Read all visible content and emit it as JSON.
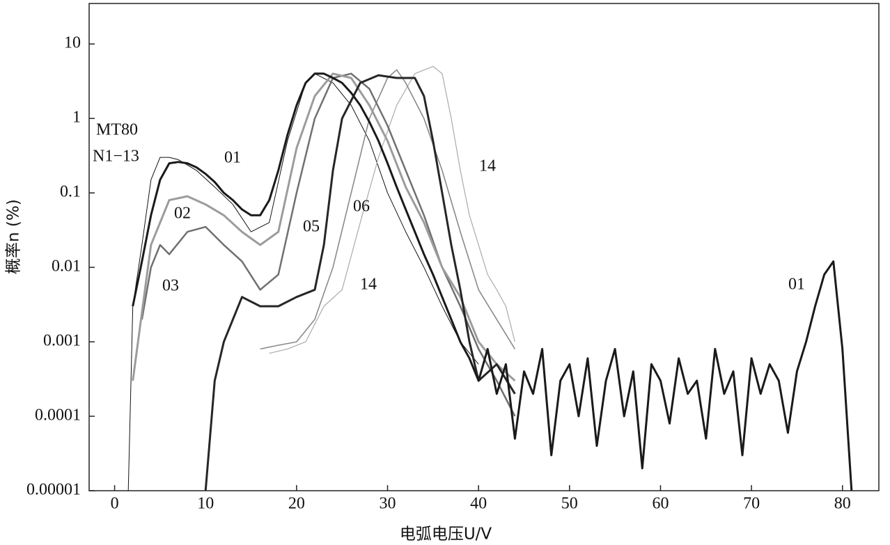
{
  "chart_data": {
    "type": "line",
    "x_label": "电弧电压U/V",
    "y_label": "概率n (%)",
    "log_y": true,
    "xlim": [
      -2.8,
      84
    ],
    "xticks": [
      0,
      10,
      20,
      30,
      40,
      50,
      60,
      70,
      80
    ],
    "ylim": [
      1e-05,
      35
    ],
    "yticks": [
      10,
      1,
      0.1,
      0.01,
      0.001,
      0.0001,
      {
        "value": 1e-05,
        "label": "0.00001"
      }
    ],
    "annotations": [
      "MT80",
      "N1−13"
    ],
    "series": [
      {
        "color": "#111111",
        "width": 1,
        "x": [
          1.5,
          2,
          3,
          4,
          5,
          6,
          7,
          9,
          11,
          13,
          15,
          17,
          19,
          21,
          22,
          24,
          26,
          28,
          30,
          32,
          34,
          36,
          38,
          40
        ],
        "values": [
          1e-05,
          0.003,
          0.02,
          0.15,
          0.3,
          0.3,
          0.28,
          0.2,
          0.12,
          0.07,
          0.03,
          0.04,
          0.5,
          3,
          4,
          3,
          1.5,
          0.5,
          0.1,
          0.03,
          0.01,
          0.003,
          0.001,
          0.0005
        ]
      },
      {
        "name": "14",
        "color": "#aaaaaa",
        "width": 1.2,
        "x": [
          17,
          19,
          21,
          23,
          25,
          27,
          29,
          31,
          33,
          35,
          36,
          37,
          38,
          39,
          40,
          41,
          42,
          43,
          44
        ],
        "values": [
          0.0007,
          0.0008,
          0.001,
          0.003,
          0.005,
          0.04,
          0.3,
          1.5,
          4,
          5,
          4,
          1,
          0.2,
          0.05,
          0.02,
          0.008,
          0.005,
          0.003,
          0.001
        ]
      },
      {
        "name": "06",
        "color": "#8a8a8a",
        "width": 1.6,
        "x": [
          16,
          18,
          20,
          22,
          24,
          26,
          28,
          30,
          31,
          32,
          34,
          36,
          38,
          40,
          42,
          44
        ],
        "values": [
          0.0008,
          0.0009,
          0.001,
          0.002,
          0.01,
          0.1,
          1,
          3.5,
          4.5,
          3,
          1,
          0.2,
          0.03,
          0.005,
          0.002,
          0.0008
        ]
      },
      {
        "name": "03",
        "color": "#707070",
        "width": 2.5,
        "x": [
          3,
          4,
          5,
          6,
          8,
          10,
          12,
          14,
          16,
          18,
          20,
          22,
          24,
          26,
          28,
          30,
          32,
          34,
          36,
          38,
          40,
          42,
          44
        ],
        "values": [
          0.002,
          0.01,
          0.02,
          0.015,
          0.03,
          0.035,
          0.02,
          0.012,
          0.005,
          0.008,
          0.1,
          1,
          3.5,
          4,
          2.5,
          0.8,
          0.2,
          0.05,
          0.01,
          0.003,
          0.0008,
          0.0003,
          0.0001
        ]
      },
      {
        "name": "02",
        "color": "#9c9c9c",
        "width": 3,
        "x": [
          2,
          4,
          6,
          8,
          10,
          12,
          14,
          16,
          18,
          20,
          22,
          24,
          26,
          28,
          30,
          32,
          34,
          36,
          38,
          40,
          42,
          44
        ],
        "values": [
          0.0003,
          0.02,
          0.08,
          0.09,
          0.07,
          0.05,
          0.03,
          0.02,
          0.03,
          0.4,
          2,
          4,
          3.5,
          1.5,
          0.5,
          0.12,
          0.04,
          0.01,
          0.004,
          0.001,
          0.0005,
          0.0003
        ]
      },
      {
        "name": "05",
        "color": "#262626",
        "width": 3,
        "x": [
          10,
          11,
          12,
          14,
          16,
          18,
          20,
          22,
          23,
          24,
          25,
          27,
          29,
          31,
          33,
          34,
          35,
          36,
          37,
          38,
          39,
          40,
          42,
          44
        ],
        "values": [
          1e-05,
          0.0003,
          0.001,
          0.004,
          0.003,
          0.003,
          0.004,
          0.005,
          0.02,
          0.2,
          1,
          3,
          3.8,
          3.5,
          3.5,
          2,
          0.5,
          0.1,
          0.02,
          0.005,
          0.001,
          0.0003,
          0.0005,
          0.0002
        ]
      },
      {
        "name": "01",
        "color": "#1a1a1a",
        "width": 3,
        "x": [
          2,
          3,
          4,
          5,
          6,
          7,
          8,
          9,
          10,
          11,
          12,
          13,
          14,
          15,
          16,
          17,
          18,
          19,
          20,
          21,
          22,
          23,
          24,
          25,
          26,
          27,
          28,
          29,
          30,
          31,
          32,
          33,
          34,
          35,
          36,
          37,
          38,
          39,
          40,
          41,
          42,
          43,
          44,
          45,
          46,
          47,
          48,
          49,
          50,
          51,
          52,
          53,
          54,
          55,
          56,
          57,
          58,
          59,
          60,
          61,
          62,
          63,
          64,
          65,
          66,
          67,
          68,
          69,
          70,
          71,
          72,
          73,
          74,
          75,
          76,
          77,
          78,
          79,
          80,
          81
        ],
        "values": [
          0.003,
          0.012,
          0.05,
          0.15,
          0.25,
          0.26,
          0.25,
          0.22,
          0.18,
          0.14,
          0.1,
          0.08,
          0.06,
          0.05,
          0.05,
          0.08,
          0.2,
          0.6,
          1.5,
          3,
          4,
          4,
          3.5,
          3,
          2.2,
          1.5,
          0.9,
          0.5,
          0.25,
          0.12,
          0.06,
          0.03,
          0.015,
          0.008,
          0.004,
          0.002,
          0.001,
          0.0006,
          0.0003,
          0.0008,
          0.0002,
          0.0005,
          5e-05,
          0.0004,
          0.0002,
          0.0008,
          3e-05,
          0.0003,
          0.0005,
          0.0001,
          0.0006,
          4e-05,
          0.0003,
          0.0008,
          0.0001,
          0.0004,
          2e-05,
          0.0005,
          0.0003,
          8e-05,
          0.0006,
          0.0002,
          0.0003,
          5e-05,
          0.0008,
          0.0002,
          0.0004,
          3e-05,
          0.0006,
          0.0002,
          0.0005,
          0.0003,
          6e-05,
          0.0004,
          0.001,
          0.003,
          0.008,
          0.012,
          0.0008,
          1e-05
        ]
      }
    ]
  }
}
